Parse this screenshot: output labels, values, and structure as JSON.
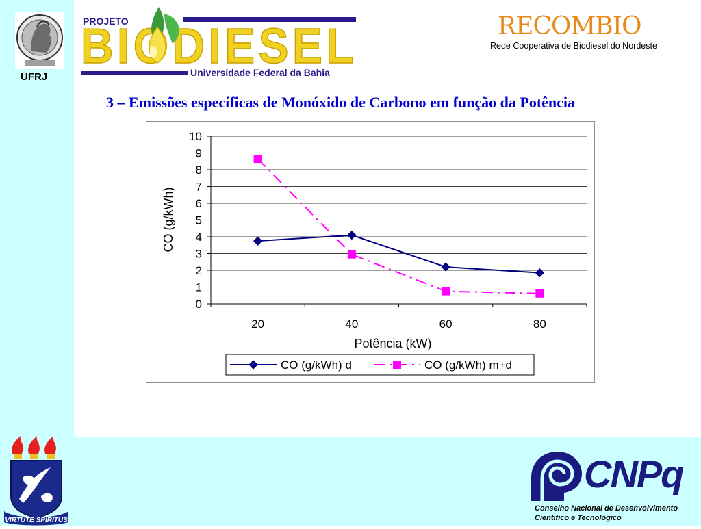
{
  "header": {
    "ufrj_label": "UFRJ",
    "projeto_label": "PROJETO",
    "biodiesel_wordmark": "BIODIESEL",
    "ufba_label": "Universidade Federal da Bahia",
    "recombio_title": "RECOMBIO",
    "recombio_subtitle": "Rede Cooperativa de Biodiesel do Nordeste"
  },
  "slide": {
    "title": "3 – Emissões específicas de Monóxido de Carbono em função da Potência"
  },
  "footer": {
    "ufba_motto": "VIRTUTE SPIRITUS",
    "cnpq_name": "CNPq",
    "cnpq_line1": "Conselho Nacional de Desenvolvimento",
    "cnpq_line2": "Científico e Tecnológico"
  },
  "chart_data": {
    "type": "line",
    "title": "",
    "xlabel": "Potência (kW)",
    "ylabel": "CO (g/kWh)",
    "categories": [
      "20",
      "40",
      "60",
      "80"
    ],
    "ylim": [
      0,
      10
    ],
    "yticks": [
      0,
      1,
      2,
      3,
      4,
      5,
      6,
      7,
      8,
      9,
      10
    ],
    "grid": true,
    "legend": "bottom",
    "series": [
      {
        "name": "CO (g/kWh) d",
        "values": [
          3.75,
          4.1,
          2.2,
          1.85
        ],
        "color": "#000080",
        "marker": "diamond",
        "dash": "solid"
      },
      {
        "name": "CO (g/kWh) m+d",
        "values": [
          8.65,
          2.95,
          0.75,
          0.62
        ],
        "color": "#ff00ff",
        "marker": "square",
        "dash": "dashdot"
      }
    ]
  },
  "colors": {
    "background_band": "#ccffff",
    "title": "#0000cc",
    "recombio": "#e88a1a",
    "cnpq": "#1a1a80"
  }
}
